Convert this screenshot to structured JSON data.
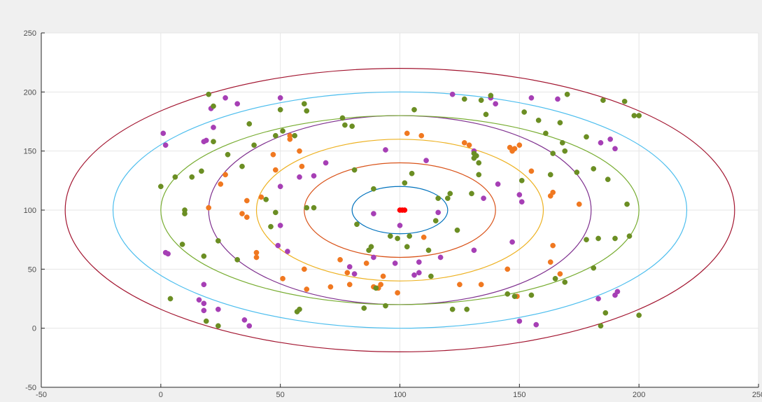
{
  "chart_data": {
    "type": "scatter",
    "title": "",
    "xlabel": "",
    "ylabel": "",
    "xlim": [
      -50,
      250
    ],
    "ylim": [
      -50,
      250
    ],
    "grid": true,
    "x_ticks": [
      "-50",
      "0",
      "50",
      "100",
      "150",
      "200",
      "250"
    ],
    "y_ticks": [
      "-50",
      "0",
      "50",
      "100",
      "150",
      "200",
      "250"
    ],
    "ellipses": {
      "center": [
        100,
        100
      ],
      "semi_axes": [
        [
          20,
          20
        ],
        [
          40,
          40
        ],
        [
          60,
          60
        ],
        [
          80,
          80
        ],
        [
          100,
          80
        ],
        [
          120,
          100
        ],
        [
          140,
          120
        ]
      ],
      "colors": [
        "#0072BD",
        "#D95319",
        "#EDB120",
        "#7E2F8E",
        "#77AC30",
        "#4DBEEE",
        "#A2142F"
      ]
    },
    "series": [
      {
        "color": "#ff0000",
        "points": [
          [
            100,
            100
          ],
          [
            101,
            100
          ],
          [
            102,
            100
          ]
        ]
      },
      {
        "color": "#a63fb5",
        "points": [
          [
            1,
            165
          ],
          [
            2,
            155
          ],
          [
            2,
            64
          ],
          [
            3,
            63
          ],
          [
            18,
            158
          ],
          [
            19,
            159
          ],
          [
            21,
            186
          ],
          [
            22,
            170
          ],
          [
            16,
            24
          ],
          [
            18,
            21
          ],
          [
            18,
            15
          ],
          [
            18,
            37
          ],
          [
            24,
            16
          ],
          [
            27,
            195
          ],
          [
            32,
            190
          ],
          [
            35,
            7
          ],
          [
            37,
            2
          ],
          [
            50,
            195
          ],
          [
            50,
            120
          ],
          [
            50,
            87
          ],
          [
            49,
            70
          ],
          [
            53,
            65
          ],
          [
            58,
            128
          ],
          [
            64,
            129
          ],
          [
            69,
            140
          ],
          [
            79,
            52
          ],
          [
            81,
            46
          ],
          [
            89,
            97
          ],
          [
            89,
            60
          ],
          [
            94,
            151
          ],
          [
            98,
            55
          ],
          [
            100,
            87
          ],
          [
            106,
            45
          ],
          [
            108,
            47
          ],
          [
            108,
            56
          ],
          [
            111,
            142
          ],
          [
            116,
            98
          ],
          [
            117,
            60
          ],
          [
            122,
            198
          ],
          [
            135,
            110
          ],
          [
            131,
            150
          ],
          [
            131,
            66
          ],
          [
            138,
            195
          ],
          [
            140,
            190
          ],
          [
            141,
            122
          ],
          [
            147,
            73
          ],
          [
            150,
            113
          ],
          [
            151,
            107
          ],
          [
            150,
            6
          ],
          [
            155,
            195
          ],
          [
            157,
            3
          ],
          [
            166,
            194
          ],
          [
            183,
            25
          ],
          [
            184,
            157
          ],
          [
            188,
            160
          ],
          [
            190,
            152
          ],
          [
            190,
            28
          ],
          [
            191,
            31
          ]
        ]
      },
      {
        "color": "#f07820",
        "points": [
          [
            20,
            102
          ],
          [
            25,
            122
          ],
          [
            27,
            130
          ],
          [
            34,
            97
          ],
          [
            36,
            108
          ],
          [
            36,
            94
          ],
          [
            40,
            60
          ],
          [
            40,
            64
          ],
          [
            42,
            111
          ],
          [
            47,
            147
          ],
          [
            48,
            134
          ],
          [
            51,
            42
          ],
          [
            54,
            163
          ],
          [
            54,
            160
          ],
          [
            58,
            150
          ],
          [
            59,
            137
          ],
          [
            60,
            50
          ],
          [
            61,
            33
          ],
          [
            71,
            35
          ],
          [
            75,
            58
          ],
          [
            78,
            47
          ],
          [
            79,
            37
          ],
          [
            86,
            55
          ],
          [
            89,
            35
          ],
          [
            91,
            34
          ],
          [
            92,
            37
          ],
          [
            93,
            44
          ],
          [
            99,
            30
          ],
          [
            103,
            165
          ],
          [
            109,
            163
          ],
          [
            110,
            77
          ],
          [
            125,
            37
          ],
          [
            127,
            157
          ],
          [
            129,
            155
          ],
          [
            134,
            37
          ],
          [
            145,
            50
          ],
          [
            146,
            153
          ],
          [
            147,
            150
          ],
          [
            148,
            152
          ],
          [
            149,
            27
          ],
          [
            150,
            155
          ],
          [
            155,
            133
          ],
          [
            163,
            112
          ],
          [
            163,
            56
          ],
          [
            164,
            115
          ],
          [
            164,
            70
          ],
          [
            175,
            105
          ],
          [
            167,
            46
          ]
        ]
      },
      {
        "color": "#6b8e23",
        "points": [
          [
            0,
            120
          ],
          [
            4,
            25
          ],
          [
            6,
            128
          ],
          [
            9,
            71
          ],
          [
            10,
            97
          ],
          [
            10,
            100
          ],
          [
            13,
            128
          ],
          [
            17,
            133
          ],
          [
            18,
            61
          ],
          [
            19,
            6
          ],
          [
            20,
            198
          ],
          [
            22,
            188
          ],
          [
            22,
            158
          ],
          [
            24,
            74
          ],
          [
            24,
            2
          ],
          [
            28,
            147
          ],
          [
            32,
            58
          ],
          [
            34,
            137
          ],
          [
            37,
            173
          ],
          [
            39,
            155
          ],
          [
            44,
            109
          ],
          [
            46,
            86
          ],
          [
            48,
            163
          ],
          [
            48,
            98
          ],
          [
            50,
            185
          ],
          [
            51,
            167
          ],
          [
            56,
            163
          ],
          [
            57,
            14
          ],
          [
            58,
            16
          ],
          [
            60,
            190
          ],
          [
            61,
            184
          ],
          [
            61,
            102
          ],
          [
            64,
            102
          ],
          [
            76,
            178
          ],
          [
            77,
            172
          ],
          [
            80,
            171
          ],
          [
            81,
            134
          ],
          [
            82,
            88
          ],
          [
            85,
            17
          ],
          [
            87,
            66
          ],
          [
            88,
            69
          ],
          [
            89,
            118
          ],
          [
            90,
            34
          ],
          [
            94,
            19
          ],
          [
            96,
            78
          ],
          [
            99,
            76
          ],
          [
            102,
            123
          ],
          [
            103,
            69
          ],
          [
            104,
            78
          ],
          [
            105,
            131
          ],
          [
            106,
            185
          ],
          [
            112,
            66
          ],
          [
            113,
            44
          ],
          [
            115,
            91
          ],
          [
            116,
            110
          ],
          [
            120,
            110
          ],
          [
            121,
            114
          ],
          [
            122,
            16
          ],
          [
            124,
            83
          ],
          [
            127,
            194
          ],
          [
            128,
            16
          ],
          [
            130,
            114
          ],
          [
            131,
            148
          ],
          [
            131,
            144
          ],
          [
            132,
            146
          ],
          [
            133,
            140
          ],
          [
            133,
            130
          ],
          [
            134,
            193
          ],
          [
            136,
            181
          ],
          [
            138,
            197
          ],
          [
            145,
            29
          ],
          [
            148,
            27
          ],
          [
            151,
            125
          ],
          [
            152,
            183
          ],
          [
            155,
            28
          ],
          [
            158,
            176
          ],
          [
            161,
            165
          ],
          [
            163,
            130
          ],
          [
            164,
            148
          ],
          [
            165,
            42
          ],
          [
            167,
            174
          ],
          [
            168,
            157
          ],
          [
            169,
            39
          ],
          [
            169,
            150
          ],
          [
            170,
            198
          ],
          [
            174,
            132
          ],
          [
            178,
            162
          ],
          [
            178,
            75
          ],
          [
            181,
            135
          ],
          [
            181,
            51
          ],
          [
            183,
            76
          ],
          [
            184,
            2
          ],
          [
            185,
            193
          ],
          [
            186,
            13
          ],
          [
            187,
            126
          ],
          [
            190,
            76
          ],
          [
            194,
            192
          ],
          [
            195,
            105
          ],
          [
            196,
            78
          ],
          [
            198,
            180
          ],
          [
            200,
            180
          ],
          [
            200,
            11
          ]
        ]
      }
    ]
  }
}
